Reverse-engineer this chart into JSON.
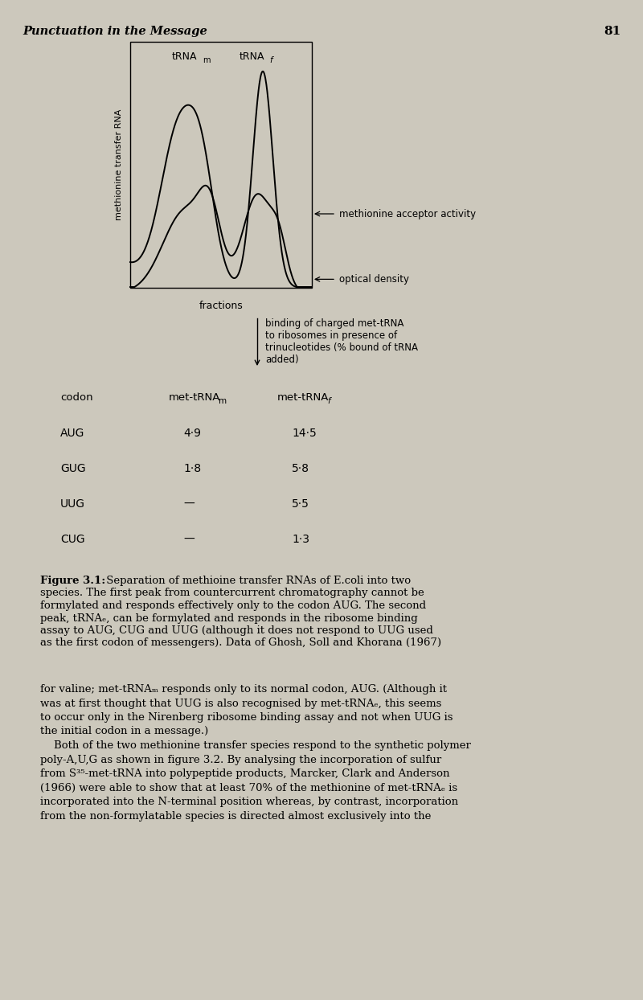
{
  "page_title": "Punctuation in the Message",
  "page_number": "81",
  "background_color": "#ccc8bc",
  "graph": {
    "ylabel": "methionine transfer RNA",
    "xlabel": "fractions",
    "optical_density_label": "optical density",
    "acceptor_activity_label": "methionine acceptor activity"
  },
  "binding_text_lines": [
    "binding of charged met-tRNA",
    "to ribosomes in presence of",
    "trinucleotides (% bound of tRNA",
    "added)"
  ],
  "table": {
    "rows": [
      [
        "AUG",
        "4·9",
        "14·5"
      ],
      [
        "GUG",
        "1·8",
        "5·8"
      ],
      [
        "UUG",
        "—",
        "5·5"
      ],
      [
        "CUG",
        "—",
        "1·3"
      ]
    ]
  },
  "caption_lines": [
    " Separation of methioine transfer RNAs of E.coli into two",
    "species. The first peak from countercurrent chromatography cannot be",
    "formylated and responds effectively only to the codon AUG. The second",
    "peak, tRNAₑ, can be formylated and responds in the ribosome binding",
    "assay to AUG, CUG and UUG (although it does not respond to UUG used",
    "as the first codon of messengers). Data of Ghosh, Soll and Khorana (1967)"
  ],
  "body_text_lines": [
    "for valine; met-tRNAₘ responds only to its normal codon, AUG. (Although it",
    "was at first thought that UUG is also recognised by met-tRNAₑ, this seems",
    "to occur only in the Nirenberg ribosome binding assay and not when UUG is",
    "the initial codon in a message.)",
    "    Both of the two methionine transfer species respond to the synthetic polymer",
    "poly-A,U,G as shown in figure 3.2. By analysing the incorporation of sulfur",
    "from S³⁵-met-tRNA into polypeptide products, Marcker, Clark and Anderson",
    "(1966) were able to show that at least 70% of the methionine of met-tRNAₑ is",
    "incorporated into the N-terminal position whereas, by contrast, incorporation",
    "from the non-formylatable species is directed almost exclusively into the"
  ]
}
